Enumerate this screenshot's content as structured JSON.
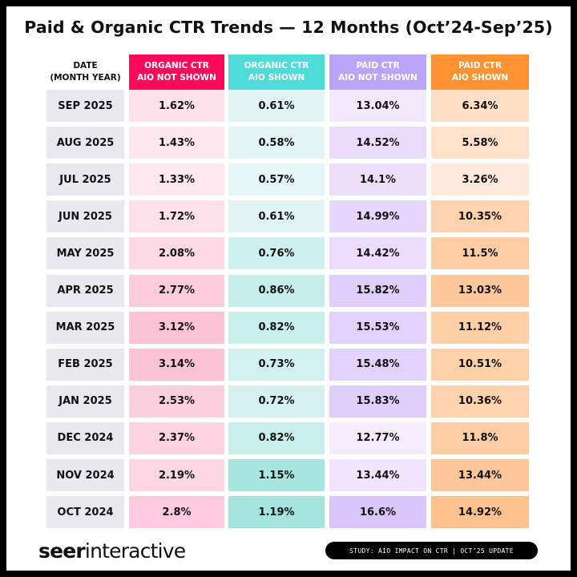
{
  "chart_data": {
    "type": "table",
    "title": "Paid & Organic CTR Trends — 12 Months (Oct’24-Sep’25)",
    "columns": [
      {
        "line1": "DATE",
        "line2": "(MONTH YEAR)",
        "color": "#e8e8ee"
      },
      {
        "line1": "ORGANIC CTR",
        "line2": "AIO NOT SHOWN",
        "color": "#ff0a5a",
        "light": "#fde8ef",
        "dark": "#fcc3d7"
      },
      {
        "line1": "ORGANIC CTR",
        "line2": "AIO SHOWN",
        "color": "#4fdbd8",
        "light": "#e3f5f4",
        "dark": "#a3e5de"
      },
      {
        "line1": "PAID CTR",
        "line2": "AIO NOT SHOWN",
        "color": "#b9a4f7",
        "light": "#f5ecfd",
        "dark": "#dac6fb"
      },
      {
        "line1": "PAID CTR",
        "line2": "AIO SHOWN",
        "color": "#ff9233",
        "light": "#ffe9da",
        "dark": "#ffc28f"
      }
    ],
    "rows": [
      {
        "date": "SEP 2025",
        "values": [
          "1.62%",
          "0.61%",
          "13.04%",
          "6.34%"
        ]
      },
      {
        "date": "AUG 2025",
        "values": [
          "1.43%",
          "0.58%",
          "14.52%",
          "5.58%"
        ]
      },
      {
        "date": "JUL 2025",
        "values": [
          "1.33%",
          "0.57%",
          "14.1%",
          "3.26%"
        ]
      },
      {
        "date": "JUN 2025",
        "values": [
          "1.72%",
          "0.61%",
          "14.99%",
          "10.35%"
        ]
      },
      {
        "date": "MAY 2025",
        "values": [
          "2.08%",
          "0.76%",
          "14.42%",
          "11.5%"
        ]
      },
      {
        "date": "APR 2025",
        "values": [
          "2.77%",
          "0.86%",
          "15.82%",
          "13.03%"
        ]
      },
      {
        "date": "MAR 2025",
        "values": [
          "3.12%",
          "0.82%",
          "15.53%",
          "11.12%"
        ]
      },
      {
        "date": "FEB 2025",
        "values": [
          "3.14%",
          "0.73%",
          "15.48%",
          "10.51%"
        ]
      },
      {
        "date": "JAN 2025",
        "values": [
          "2.53%",
          "0.72%",
          "15.83%",
          "10.36%"
        ]
      },
      {
        "date": "DEC 2024",
        "values": [
          "2.37%",
          "0.82%",
          "12.77%",
          "11.8%"
        ]
      },
      {
        "date": "NOV 2024",
        "values": [
          "2.19%",
          "1.15%",
          "13.44%",
          "13.44%"
        ]
      },
      {
        "date": "OCT 2024",
        "values": [
          "2.8%",
          "1.19%",
          "16.6%",
          "14.92%"
        ]
      }
    ]
  },
  "footer": {
    "logo": {
      "bold": "seer",
      "regular": "interactive"
    },
    "badge": "STUDY: AIO IMPACT ON CTR | OCT’25 UPDATE"
  }
}
